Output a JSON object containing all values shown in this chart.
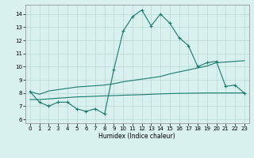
{
  "x": [
    0,
    1,
    2,
    3,
    4,
    5,
    6,
    7,
    8,
    9,
    10,
    11,
    12,
    13,
    14,
    15,
    16,
    17,
    18,
    19,
    20,
    21,
    22,
    23
  ],
  "line1": [
    8.1,
    7.3,
    7.0,
    7.3,
    7.3,
    6.8,
    6.6,
    6.8,
    6.4,
    9.8,
    12.7,
    13.8,
    14.3,
    13.1,
    14.0,
    13.3,
    12.2,
    11.6,
    10.0,
    10.3,
    10.4,
    8.5,
    8.6,
    8.0
  ],
  "line2": [
    8.1,
    7.9,
    8.15,
    8.25,
    8.35,
    8.45,
    8.5,
    8.55,
    8.6,
    8.7,
    8.85,
    8.95,
    9.05,
    9.15,
    9.25,
    9.45,
    9.6,
    9.75,
    9.9,
    10.05,
    10.3,
    10.35,
    10.4,
    10.45
  ],
  "line3": [
    7.5,
    7.5,
    7.55,
    7.6,
    7.65,
    7.7,
    7.72,
    7.75,
    7.78,
    7.8,
    7.83,
    7.85,
    7.87,
    7.9,
    7.93,
    7.95,
    7.97,
    7.98,
    7.99,
    8.0,
    8.0,
    8.0,
    8.0,
    8.0
  ],
  "line_color": "#1a7a6e",
  "bg_color": "#d8f0ee",
  "grid_color": "#b8d8d4",
  "xlabel": "Humidex (Indice chaleur)",
  "xlim": [
    -0.5,
    23.5
  ],
  "ylim": [
    5.7,
    14.7
  ],
  "yticks": [
    6,
    7,
    8,
    9,
    10,
    11,
    12,
    13,
    14
  ],
  "xticks": [
    0,
    1,
    2,
    3,
    4,
    5,
    6,
    7,
    8,
    9,
    10,
    11,
    12,
    13,
    14,
    15,
    16,
    17,
    18,
    19,
    20,
    21,
    22,
    23
  ]
}
